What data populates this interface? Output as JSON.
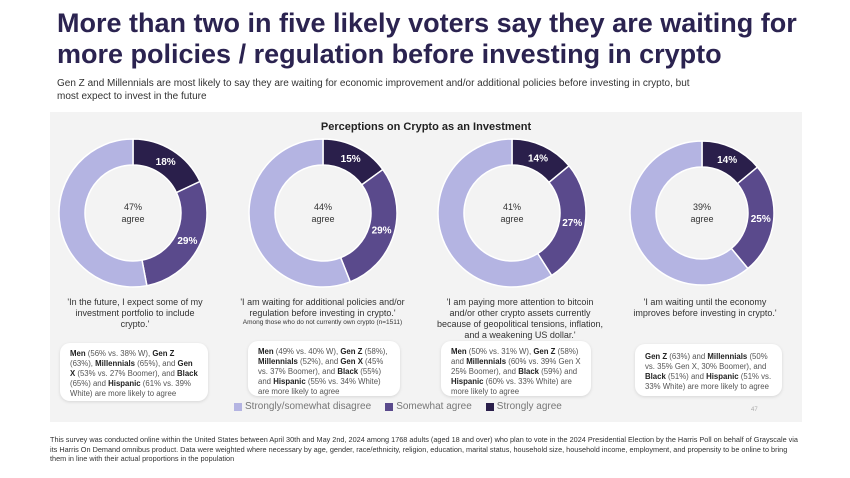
{
  "title": "More than two in five likely voters say they are waiting for more policies / regulation before investing in crypto",
  "subtitle": "Gen Z and Millennials are most likely to say they are waiting for economic improvement and/or additional  policies before investing in crypto, but most expect to invest in the future",
  "colors": {
    "disagree": "#b4b4e2",
    "somewhat": "#5a4a8c",
    "strongly": "#2a1f4b"
  },
  "chart_data": [
    {
      "type": "pie",
      "title": "Perceptions on Crypto as an Investment",
      "center_label": "47%\nagree",
      "center_pct": "47%",
      "center_word": "agree",
      "categories": [
        "Strongly agree",
        "Somewhat agree",
        "Strongly/somewhat disagree"
      ],
      "values": [
        18,
        29,
        53
      ],
      "data_labels": [
        "18%",
        "29%",
        ""
      ]
    },
    {
      "type": "pie",
      "center_pct": "44%",
      "center_word": "agree",
      "categories": [
        "Strongly agree",
        "Somewhat agree",
        "Strongly/somewhat disagree"
      ],
      "values": [
        15,
        29,
        56
      ],
      "data_labels": [
        "15%",
        "29%",
        ""
      ]
    },
    {
      "type": "pie",
      "center_pct": "41%",
      "center_word": "agree",
      "categories": [
        "Strongly agree",
        "Somewhat agree",
        "Strongly/somewhat disagree"
      ],
      "values": [
        14,
        27,
        59
      ],
      "data_labels": [
        "14%",
        "27%",
        ""
      ]
    },
    {
      "type": "pie",
      "center_pct": "39%",
      "center_word": "agree",
      "categories": [
        "Strongly agree",
        "Somewhat agree",
        "Strongly/somewhat disagree"
      ],
      "values": [
        14,
        25,
        61
      ],
      "data_labels": [
        "14%",
        "25%",
        ""
      ]
    }
  ],
  "quotes": [
    {
      "text": "'In the future, I expect some of my investment portfolio to include crypto.'",
      "note": ""
    },
    {
      "text": "'I am waiting for additional policies and/or regulation before investing in crypto.'",
      "note": "Among those who do not currently own crypto (n=1511)"
    },
    {
      "text": "'I am paying more attention to bitcoin and/or other crypto assets currently because of geopolitical tensions,  inflation, and a weakening US dollar.'",
      "note": ""
    },
    {
      "text": "'I am waiting until the  economy improves before  investing in crypto.'",
      "note": ""
    }
  ],
  "boxes": [
    [
      [
        "b",
        "Men"
      ],
      [
        "t",
        " (56% vs. 38% W), "
      ],
      [
        "b",
        "Gen Z"
      ],
      [
        "t",
        " (63%), "
      ],
      [
        "b",
        "Millennials"
      ],
      [
        "t",
        " (65%), and "
      ],
      [
        "b",
        "Gen X"
      ],
      [
        "t",
        " (53% vs. 27% Boomer), and "
      ],
      [
        "b",
        "Black"
      ],
      [
        "t",
        " (65%) and "
      ],
      [
        "b",
        "Hispanic"
      ],
      [
        "t",
        " (61% vs. 39% White) are more likely to agree"
      ]
    ],
    [
      [
        "b",
        "Men"
      ],
      [
        "t",
        " (49% vs. 40% W), "
      ],
      [
        "b",
        "Gen Z"
      ],
      [
        "t",
        " (58%), "
      ],
      [
        "b",
        "Millennials"
      ],
      [
        "t",
        " (52%), and "
      ],
      [
        "b",
        "Gen X"
      ],
      [
        "t",
        " (45% vs. 37% Boomer), and "
      ],
      [
        "b",
        "Black"
      ],
      [
        "t",
        " (55%) and "
      ],
      [
        "b",
        "Hispanic"
      ],
      [
        "t",
        " (55% vs. 34% White) are more likely to agree"
      ]
    ],
    [
      [
        "b",
        "Men"
      ],
      [
        "t",
        " (50% vs. 31% W), "
      ],
      [
        "b",
        "Gen Z"
      ],
      [
        "t",
        " (58%) and "
      ],
      [
        "b",
        "Millennials"
      ],
      [
        "t",
        " (60% vs. 39% Gen X 25% Boomer), and "
      ],
      [
        "b",
        "Black"
      ],
      [
        "t",
        " (59%) and "
      ],
      [
        "b",
        "Hispanic"
      ],
      [
        "t",
        " (60% vs. 33% White) are more likely to agree"
      ]
    ],
    [
      [
        "b",
        "Gen Z"
      ],
      [
        "t",
        " (63%) and "
      ],
      [
        "b",
        "Millennials"
      ],
      [
        "t",
        " (50% vs. 35% Gen X, 30% Boomer), and "
      ],
      [
        "b",
        "Black"
      ],
      [
        "t",
        " (51%) and "
      ],
      [
        "b",
        "Hispanic"
      ],
      [
        "t",
        " (51% vs. 33% White) are more likely to agree"
      ]
    ]
  ],
  "legend": [
    "Strongly/somewhat disagree",
    "Somewhat agree",
    "Strongly agree"
  ],
  "page_number": "47",
  "footer": "This survey was conducted online within the United States between April 30th and May 2nd, 2024 among 1768 adults (aged 18 and over) who plan to vote in the 2024 Presidential Election by the Harris Poll on behalf of Grayscale via its Harris On Demand omnibus product. Data were weighted where necessary by age, gender, race/ethnicity, religion, education, marital status, household size, household income, employment, and propensity to be online to bring them in line with their actual proportions in the population"
}
